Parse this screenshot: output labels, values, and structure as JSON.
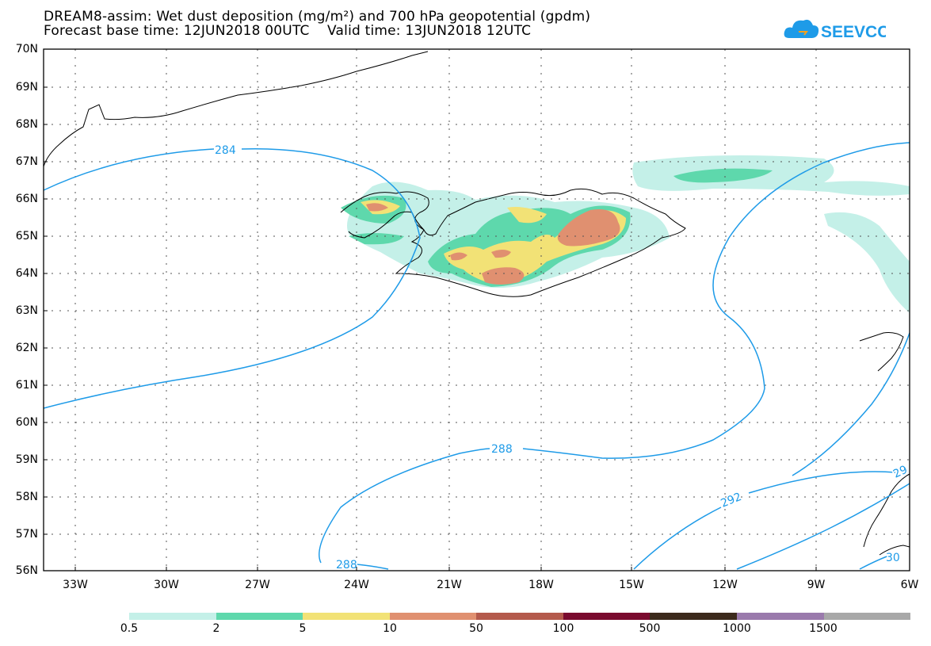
{
  "header": {
    "title_line1": "DREAM8-assim: Wet dust deposition (mg/m²) and 700 hPa geopotential (gpdm)",
    "title_line2": "Forecast base time: 12JUN2018 00UTC    Valid time: 13JUN2018 12UTC",
    "logo_text": "SEEVCCC"
  },
  "map": {
    "lat_labels": [
      "70N",
      "69N",
      "68N",
      "67N",
      "66N",
      "65N",
      "64N",
      "63N",
      "62N",
      "61N",
      "60N",
      "59N",
      "58N",
      "57N",
      "56N"
    ],
    "lon_labels": [
      "33W",
      "30W",
      "27W",
      "24W",
      "21W",
      "18W",
      "15W",
      "12W",
      "9W",
      "6W"
    ],
    "contour_labels": [
      "284",
      "288",
      "288",
      "292",
      "29",
      "30"
    ],
    "contour_color": "#1e9be8"
  },
  "legend": {
    "labels": [
      "0.5",
      "2",
      "5",
      "10",
      "50",
      "100",
      "500",
      "1000",
      "1500"
    ],
    "colors": [
      "#c4f0e8",
      "#5ed8ac",
      "#f2e276",
      "#e09070",
      "#b45a4c",
      "#7a0a2e",
      "#3c2a1c",
      "#9a7aac",
      "#a8a8a8"
    ]
  }
}
